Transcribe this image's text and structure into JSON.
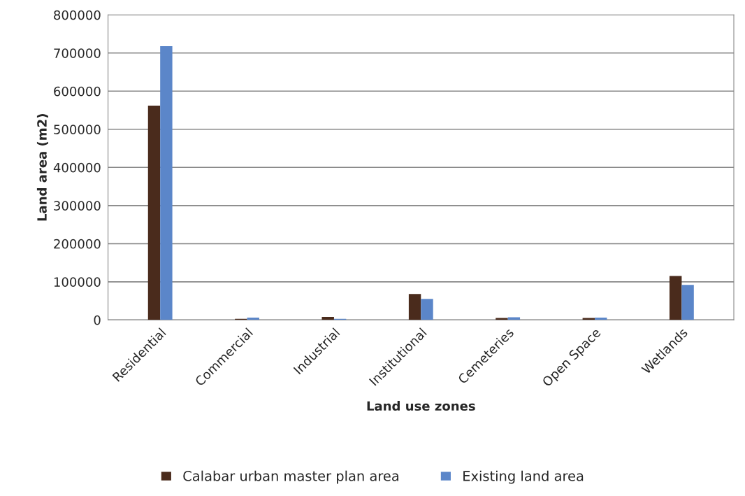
{
  "chart_data": {
    "type": "bar",
    "xlabel": "Land use zones",
    "ylabel": "Land area (m2)",
    "categories": [
      "Residential",
      "Commercial",
      "Industrial",
      "Institutional",
      "Cemeteries",
      "Open Space",
      "Wetlands"
    ],
    "series": [
      {
        "name": "Calabar urban master plan area",
        "color": "#4a2b1c",
        "values": [
          562000,
          3000,
          8000,
          68000,
          5000,
          5000,
          115000
        ]
      },
      {
        "name": "Existing land area",
        "color": "#5b86c9",
        "values": [
          718000,
          6000,
          3000,
          55000,
          7000,
          6000,
          92000
        ]
      }
    ],
    "ylim": [
      0,
      800000
    ],
    "yticks": [
      0,
      100000,
      200000,
      300000,
      400000,
      500000,
      600000,
      700000,
      800000
    ],
    "grid": "y",
    "legend": "bottom"
  }
}
